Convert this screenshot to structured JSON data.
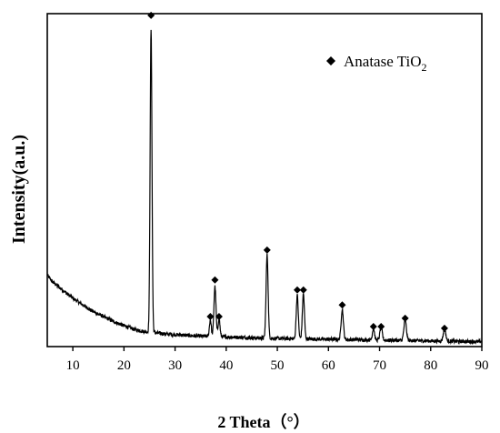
{
  "chart_data": {
    "type": "line",
    "xlabel": "2 Theta（°）",
    "ylabel": "Intensity(a.u.)",
    "xlim": [
      5,
      90
    ],
    "ylim": [
      0,
      100
    ],
    "x_ticks": [
      10,
      20,
      30,
      40,
      50,
      60,
      70,
      80,
      90
    ],
    "y_ticks_shown": false,
    "grid": false,
    "legend": {
      "placement": "top-right",
      "entries": [
        {
          "marker": "diamond",
          "label": "Anatase TiO",
          "subscript": "2"
        }
      ]
    },
    "series": [
      {
        "line_color": "#000000",
        "baseline": {
          "x": [
            5,
            6,
            8,
            10,
            12,
            14,
            16,
            18,
            20,
            22,
            24,
            25,
            26,
            28,
            30,
            32,
            34,
            36,
            38,
            40,
            42,
            44,
            46,
            48,
            50,
            52,
            54,
            56,
            58,
            60,
            62,
            64,
            66,
            68,
            70,
            72,
            74,
            76,
            78,
            80,
            82,
            84,
            86,
            88,
            90
          ],
          "y": [
            21.5,
            19.5,
            17,
            14.5,
            12.5,
            10.5,
            9,
            7.5,
            6.3,
            5.2,
            4.5,
            4.3,
            4.2,
            3.8,
            3.6,
            3.4,
            3.2,
            3.1,
            3.0,
            2.9,
            2.8,
            2.7,
            2.6,
            2.5,
            2.45,
            2.4,
            2.35,
            2.3,
            2.25,
            2.2,
            2.15,
            2.1,
            2.05,
            2.0,
            1.95,
            1.9,
            1.85,
            1.8,
            1.75,
            1.7,
            1.65,
            1.6,
            1.55,
            1.5,
            1.5
          ]
        },
        "peaks": [
          {
            "x": 25.3,
            "height": 91,
            "width": 0.18
          },
          {
            "x": 36.9,
            "height": 5,
            "width": 0.18
          },
          {
            "x": 37.8,
            "height": 15,
            "width": 0.2
          },
          {
            "x": 38.6,
            "height": 5.5,
            "width": 0.18
          },
          {
            "x": 48.0,
            "height": 25,
            "width": 0.2
          },
          {
            "x": 53.9,
            "height": 13,
            "width": 0.2
          },
          {
            "x": 55.1,
            "height": 13.5,
            "width": 0.2
          },
          {
            "x": 62.7,
            "height": 9,
            "width": 0.22
          },
          {
            "x": 68.8,
            "height": 3.5,
            "width": 0.2
          },
          {
            "x": 70.3,
            "height": 4,
            "width": 0.22
          },
          {
            "x": 75.0,
            "height": 6,
            "width": 0.25
          },
          {
            "x": 82.7,
            "height": 3.5,
            "width": 0.25
          }
        ],
        "markers": [
          {
            "x": 25.3,
            "y": 99.5
          },
          {
            "x": 36.9,
            "y": 9
          },
          {
            "x": 37.8,
            "y": 20
          },
          {
            "x": 38.6,
            "y": 9
          },
          {
            "x": 48.0,
            "y": 29
          },
          {
            "x": 53.9,
            "y": 17
          },
          {
            "x": 55.1,
            "y": 17
          },
          {
            "x": 62.7,
            "y": 12.5
          },
          {
            "x": 68.8,
            "y": 6
          },
          {
            "x": 70.3,
            "y": 6
          },
          {
            "x": 75.0,
            "y": 8.5
          },
          {
            "x": 82.7,
            "y": 5.5
          }
        ]
      }
    ]
  }
}
